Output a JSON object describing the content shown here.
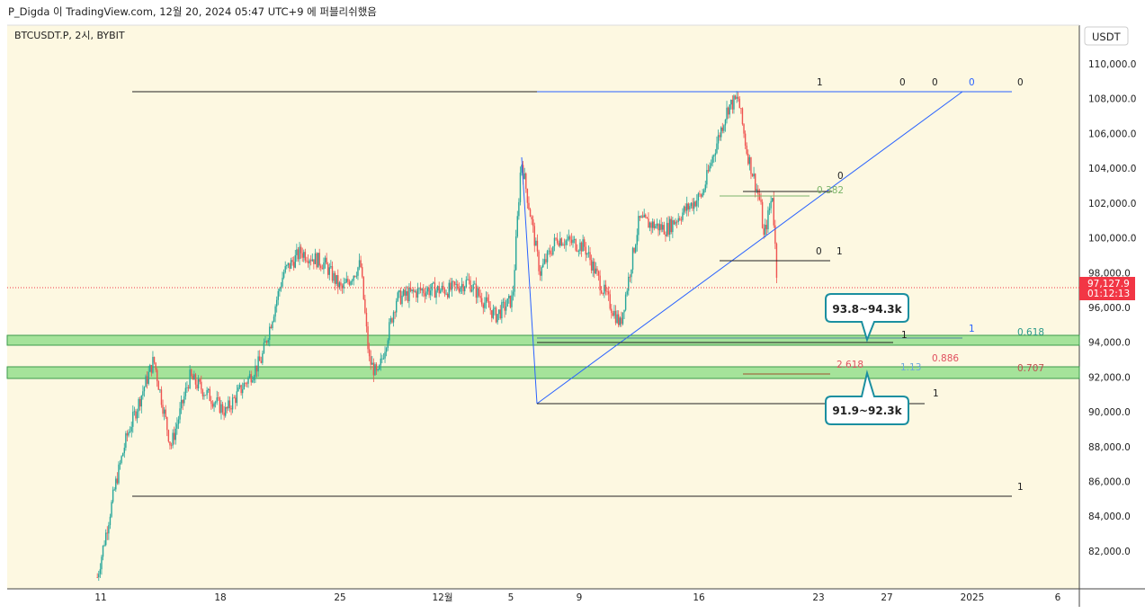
{
  "header": {
    "published": "P_Digda 이 TradingView.com, 12월 20, 2024 05:47 UTC+9 에 퍼블리쉬했음"
  },
  "symbol": {
    "label": "BTCUSDT.P, 2시, BYBIT"
  },
  "axis": {
    "currency": "USDT"
  },
  "current_price": {
    "value": "97,127.9",
    "countdown": "01:12:13",
    "color": "#f23645"
  },
  "annotations": {
    "zone_upper": "93.8~94.3k",
    "zone_lower": "91.9~92.3k",
    "fib_labels": [
      "1",
      "0",
      "0",
      "0",
      "0",
      "0.382",
      "0",
      "0",
      "1",
      "1",
      "1",
      "0.618",
      "2.618",
      "1.13",
      "0.886",
      "0.707",
      "1",
      "1"
    ]
  },
  "colors": {
    "background": "#fdf8e1",
    "up": "#26a69a",
    "down": "#ef5350",
    "zone": "#a5e39a",
    "trend": "#2962ff"
  },
  "chart_data": {
    "type": "candlestick",
    "title": "BTCUSDT.P, 2시, BYBIT",
    "ylabel": "USDT",
    "ylim": [
      80000,
      111000
    ],
    "y_ticks": [
      82000,
      84000,
      86000,
      88000,
      90000,
      92000,
      94000,
      96000,
      98000,
      100000,
      102000,
      104000,
      106000,
      108000,
      110000
    ],
    "y_tick_labels": [
      "82,000.0",
      "84,000.0",
      "86,000.0",
      "88,000.0",
      "90,000.0",
      "92,000.0",
      "94,000.0",
      "96,000.0",
      "98,000.0",
      "100,000.0",
      "102,000.0",
      "104,000.0",
      "106,000.0",
      "108,000.0",
      "110,000.0"
    ],
    "x_ticks": [
      11,
      18,
      25,
      31,
      35,
      39,
      46,
      53,
      57,
      62,
      67
    ],
    "x_tick_labels": [
      "11",
      "18",
      "25",
      "12월",
      "5",
      "9",
      "16",
      "23",
      "27",
      "2025",
      "6"
    ],
    "x_unit": "day index from Nov 0",
    "close_waypoints": [
      [
        10.8,
        80500
      ],
      [
        11.9,
        86000
      ],
      [
        12.5,
        88500
      ],
      [
        14.1,
        93000
      ],
      [
        15.1,
        88000
      ],
      [
        16.2,
        92000
      ],
      [
        18.3,
        90000
      ],
      [
        20.4,
        93000
      ],
      [
        21.7,
        98000
      ],
      [
        22.7,
        99200
      ],
      [
        24.1,
        98500
      ],
      [
        25.1,
        97000
      ],
      [
        26.2,
        98500
      ],
      [
        26.7,
        93000
      ],
      [
        27.2,
        92000
      ],
      [
        28.3,
        96500
      ],
      [
        29.8,
        97000
      ],
      [
        31.4,
        97000
      ],
      [
        32.5,
        97500
      ],
      [
        34.1,
        95500
      ],
      [
        35.1,
        96500
      ],
      [
        35.6,
        104500
      ],
      [
        36.2,
        101000
      ],
      [
        36.7,
        98000
      ],
      [
        37.7,
        100000
      ],
      [
        39.3,
        99500
      ],
      [
        40.4,
        97000
      ],
      [
        41.4,
        95000
      ],
      [
        42.5,
        101000
      ],
      [
        44.1,
        100500
      ],
      [
        45.1,
        101500
      ],
      [
        46.2,
        102500
      ],
      [
        46.9,
        105000
      ],
      [
        47.7,
        107500
      ],
      [
        48.3,
        108000
      ],
      [
        48.8,
        105000
      ],
      [
        49.6,
        102000
      ],
      [
        49.8,
        100000
      ],
      [
        50.3,
        102500
      ],
      [
        50.6,
        97127.9
      ]
    ],
    "last_price": 97127.9
  }
}
